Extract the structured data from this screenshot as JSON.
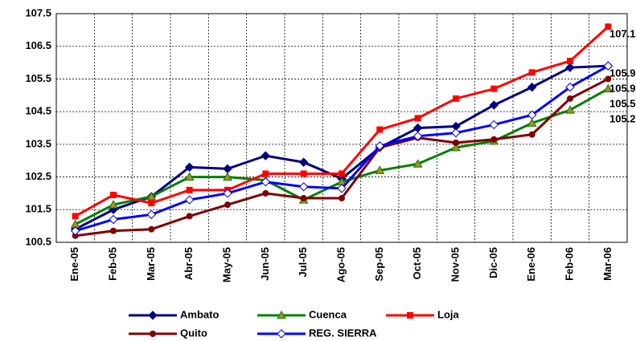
{
  "chart_data": {
    "type": "line",
    "categories": [
      "Ene-05",
      "Feb-05",
      "Mar-05",
      "Abr-05",
      "May-05",
      "Jun-05",
      "Jul-05",
      "Ago-05",
      "Sep-05",
      "Oct-05",
      "Nov-05",
      "Dic-05",
      "Ene-06",
      "Feb-06",
      "Mar-06"
    ],
    "series": [
      {
        "name": "Ambato",
        "color": "#000080",
        "marker": "diamond",
        "marker_fill": "#000080",
        "values": [
          100.9,
          101.5,
          101.9,
          102.8,
          102.75,
          103.15,
          102.95,
          102.45,
          103.4,
          104.0,
          104.05,
          104.7,
          105.25,
          105.85,
          105.9
        ]
      },
      {
        "name": "Cuenca",
        "color": "#008000",
        "marker": "triangle",
        "marker_fill": "#b08a2a",
        "values": [
          101.05,
          101.65,
          101.9,
          102.5,
          102.5,
          102.4,
          101.8,
          102.35,
          102.7,
          102.9,
          103.4,
          103.6,
          104.15,
          104.55,
          105.2
        ]
      },
      {
        "name": "Loja",
        "color": "#ff0000",
        "marker": "square",
        "marker_fill": "#ff0000",
        "values": [
          101.3,
          101.95,
          101.7,
          102.1,
          102.1,
          102.6,
          102.6,
          102.6,
          103.95,
          104.3,
          104.9,
          105.2,
          105.7,
          106.05,
          107.1
        ]
      },
      {
        "name": "Quito",
        "color": "#800000",
        "marker": "circle",
        "marker_fill": "#800000",
        "values": [
          100.7,
          100.85,
          100.9,
          101.3,
          101.65,
          102.0,
          101.85,
          101.85,
          103.4,
          103.7,
          103.55,
          103.65,
          103.8,
          104.9,
          105.5
        ]
      },
      {
        "name": "REG. SIERRA",
        "color": "#0000ff",
        "marker": "diamond",
        "marker_fill": "#ffffcc",
        "values": [
          100.85,
          101.2,
          101.35,
          101.8,
          102.0,
          102.35,
          102.2,
          102.15,
          103.45,
          103.75,
          103.85,
          104.1,
          104.4,
          105.25,
          105.9
        ]
      }
    ],
    "ylim": [
      100.5,
      107.5
    ],
    "yticks": [
      100.5,
      101.5,
      102.5,
      103.5,
      104.5,
      105.5,
      106.5,
      107.5
    ],
    "grid": true,
    "last_value_labels": true,
    "legend": "bottom"
  }
}
